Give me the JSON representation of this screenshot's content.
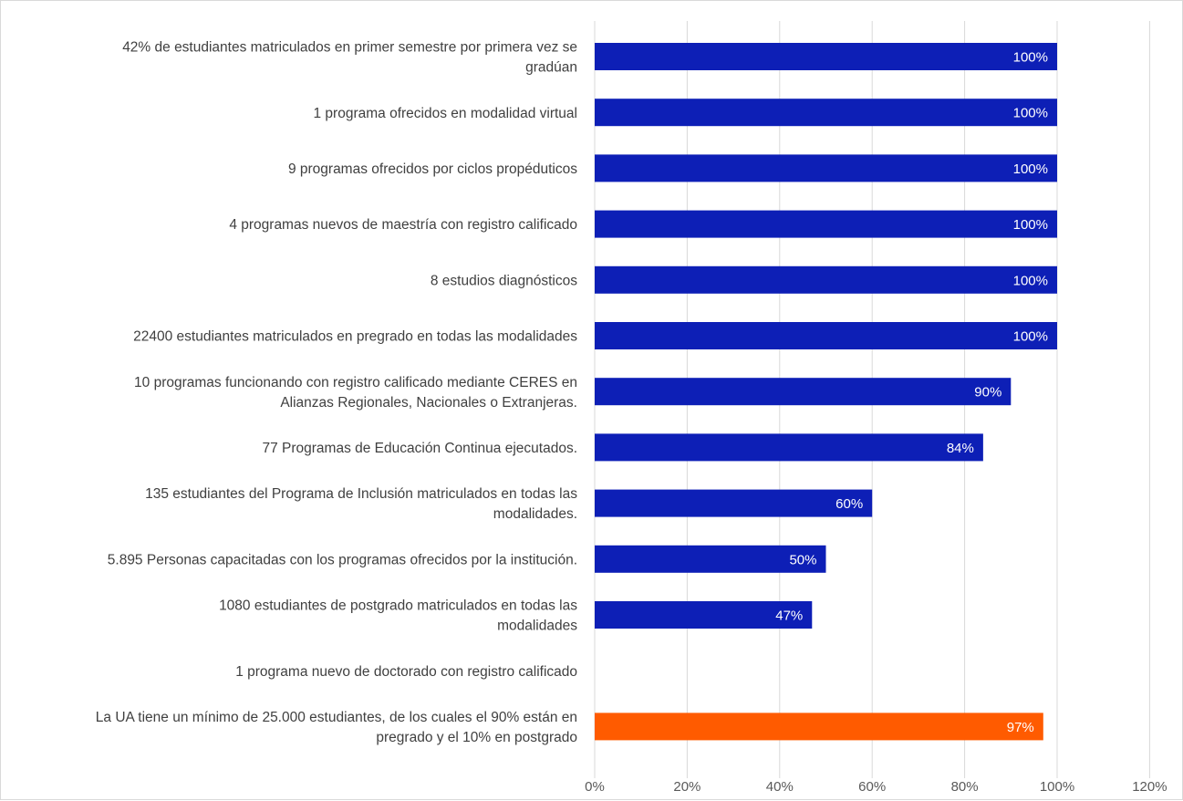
{
  "chart_data": {
    "type": "bar",
    "orientation": "horizontal",
    "categories": [
      "42%  de estudiantes matriculados en primer semestre por primera vez se gradúan",
      "1 programa ofrecidos en modalidad virtual",
      "9 programas ofrecidos por ciclos propéduticos",
      "4 programas nuevos de maestría con registro calificado",
      "8 estudios diagnósticos",
      "22400 estudiantes matriculados en pregrado en todas las modalidades",
      "10 programas funcionando con registro calificado mediante CERES en Alianzas Regionales, Nacionales o Extranjeras.",
      "77 Programas de Educación Continua ejecutados.",
      "135 estudiantes del Programa de Inclusión matriculados en todas las modalidades.",
      "5.895 Personas capacitadas con los programas ofrecidos por la institución.",
      "1080 estudiantes de postgrado matriculados en todas las modalidades",
      "1 programa nuevo de doctorado con registro calificado",
      "La UA tiene un mínimo de 25.000 estudiantes, de los cuales el 90% están en pregrado y el 10% en postgrado"
    ],
    "category_lines": [
      [
        "42%  de estudiantes matriculados en primer semestre por primera vez se",
        "gradúan"
      ],
      [
        "1 programa ofrecidos en modalidad virtual"
      ],
      [
        "9 programas ofrecidos por ciclos propéduticos"
      ],
      [
        "4 programas nuevos de maestría con registro calificado"
      ],
      [
        "8 estudios diagnósticos"
      ],
      [
        "22400 estudiantes matriculados en pregrado en todas las modalidades"
      ],
      [
        "10 programas funcionando con registro calificado mediante CERES en",
        "Alianzas Regionales, Nacionales o Extranjeras."
      ],
      [
        "77 Programas de Educación Continua ejecutados."
      ],
      [
        "135 estudiantes del Programa de Inclusión matriculados en todas las",
        "modalidades."
      ],
      [
        "5.895 Personas capacitadas con los programas ofrecidos por la institución."
      ],
      [
        "1080 estudiantes de postgrado matriculados en todas las",
        "modalidades"
      ],
      [
        "1 programa nuevo de doctorado con registro calificado"
      ],
      [
        "La UA tiene un mínimo de 25.000 estudiantes, de los cuales el 90% están en",
        "pregrado y el 10% en postgrado"
      ]
    ],
    "values": [
      100,
      100,
      100,
      100,
      100,
      100,
      90,
      84,
      60,
      50,
      47,
      null,
      97
    ],
    "data_labels": [
      "100%",
      "100%",
      "100%",
      "100%",
      "100%",
      "100%",
      "90%",
      "84%",
      "60%",
      "50%",
      "47%",
      "",
      "97%"
    ],
    "bar_colors": [
      "#0d1fb6",
      "#0d1fb6",
      "#0d1fb6",
      "#0d1fb6",
      "#0d1fb6",
      "#0d1fb6",
      "#0d1fb6",
      "#0d1fb6",
      "#0d1fb6",
      "#0d1fb6",
      "#0d1fb6",
      "#0d1fb6",
      "#ff5b00"
    ],
    "xlim": [
      0,
      120
    ],
    "x_ticks": [
      0,
      20,
      40,
      60,
      80,
      100,
      120
    ],
    "x_tick_labels": [
      "0%",
      "20%",
      "40%",
      "60%",
      "80%",
      "100%",
      "120%"
    ],
    "grid": true,
    "legend": "none",
    "title": "",
    "xlabel": "",
    "ylabel": ""
  }
}
